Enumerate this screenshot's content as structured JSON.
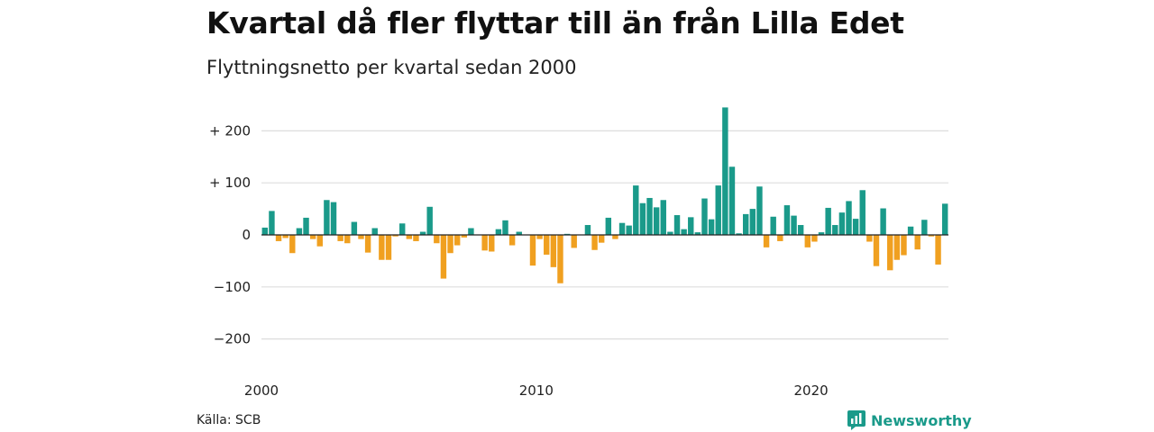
{
  "title": "Kvartal då fler flyttar till än från Lilla Edet",
  "subtitle": "Flyttningsnetto per kvartal sedan 2000",
  "source": "Källa: SCB",
  "brand": "Newsworthy",
  "colors": {
    "positive": "#1a9a8a",
    "negative": "#f0a020"
  },
  "chart_data": {
    "type": "bar",
    "x_start": "2000 Q1",
    "y_ticks": [
      200,
      100,
      0,
      -100,
      -200
    ],
    "y_tick_labels": [
      "+ 200",
      "+ 100",
      "0",
      "−100",
      "−200"
    ],
    "ylim": [
      -230,
      250
    ],
    "x_tick_labels": [
      {
        "label": "2000",
        "index": 0
      },
      {
        "label": "2010",
        "index": 40
      },
      {
        "label": "2020",
        "index": 80
      }
    ],
    "grid": true,
    "values": [
      14,
      46,
      -12,
      -6,
      -35,
      13,
      33,
      -8,
      -22,
      67,
      63,
      -12,
      -16,
      25,
      -8,
      -34,
      13,
      -48,
      -48,
      -3,
      22,
      -8,
      -12,
      6,
      54,
      -16,
      -84,
      -35,
      -20,
      -5,
      13,
      0,
      -30,
      -32,
      11,
      28,
      -20,
      6,
      0,
      -59,
      -8,
      -38,
      -62,
      -93,
      2,
      -25,
      0,
      19,
      -29,
      -15,
      33,
      -8,
      23,
      18,
      95,
      61,
      71,
      53,
      67,
      6,
      38,
      11,
      34,
      5,
      70,
      30,
      95,
      245,
      131,
      3,
      40,
      50,
      93,
      -24,
      35,
      -12,
      57,
      37,
      19,
      -24,
      -13,
      5,
      52,
      19,
      43,
      65,
      31,
      86,
      -13,
      -60,
      51,
      -68,
      -48,
      -39,
      16,
      -28,
      29,
      -3,
      -57,
      60
    ]
  }
}
